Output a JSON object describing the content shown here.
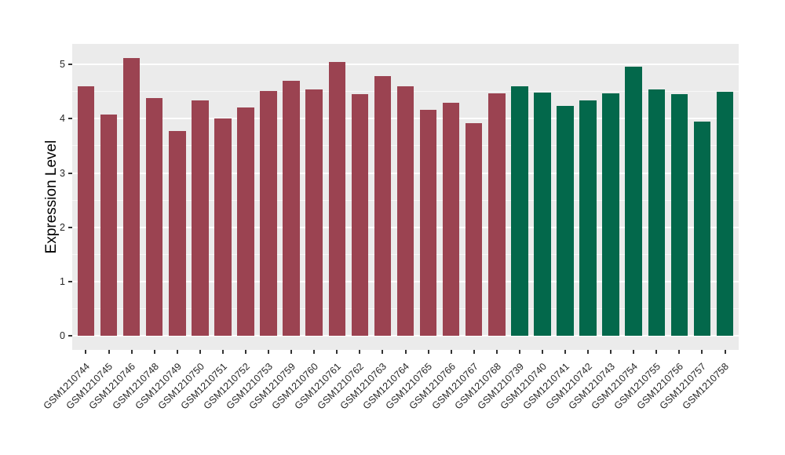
{
  "chart_data": {
    "type": "bar",
    "title": "",
    "xlabel": "",
    "ylabel": "Expression Level",
    "ylim": [
      0,
      5
    ],
    "yticks": [
      0,
      1,
      2,
      3,
      4,
      5
    ],
    "y_minor_ticks": [
      0.5,
      1.5,
      2.5,
      3.5,
      4.5
    ],
    "grid": true,
    "legend_position": "none",
    "panel_background": "#EBEBEB",
    "gridline_color": "#FFFFFF",
    "tick_color": "#333333",
    "axis_text_color": "#262626",
    "group_colors": {
      "maroon": "#9B4351",
      "green": "#03684B"
    },
    "bars": [
      {
        "label": "GSM1210744",
        "value": 4.6,
        "group": "maroon"
      },
      {
        "label": "GSM1210745",
        "value": 4.08,
        "group": "maroon"
      },
      {
        "label": "GSM1210746",
        "value": 5.12,
        "group": "maroon"
      },
      {
        "label": "GSM1210748",
        "value": 4.38,
        "group": "maroon"
      },
      {
        "label": "GSM1210749",
        "value": 3.78,
        "group": "maroon"
      },
      {
        "label": "GSM1210750",
        "value": 4.33,
        "group": "maroon"
      },
      {
        "label": "GSM1210751",
        "value": 4.01,
        "group": "maroon"
      },
      {
        "label": "GSM1210752",
        "value": 4.2,
        "group": "maroon"
      },
      {
        "label": "GSM1210753",
        "value": 4.51,
        "group": "maroon"
      },
      {
        "label": "GSM1210759",
        "value": 4.7,
        "group": "maroon"
      },
      {
        "label": "GSM1210760",
        "value": 4.54,
        "group": "maroon"
      },
      {
        "label": "GSM1210761",
        "value": 5.04,
        "group": "maroon"
      },
      {
        "label": "GSM1210762",
        "value": 4.45,
        "group": "maroon"
      },
      {
        "label": "GSM1210763",
        "value": 4.78,
        "group": "maroon"
      },
      {
        "label": "GSM1210764",
        "value": 4.59,
        "group": "maroon"
      },
      {
        "label": "GSM1210765",
        "value": 4.16,
        "group": "maroon"
      },
      {
        "label": "GSM1210766",
        "value": 4.29,
        "group": "maroon"
      },
      {
        "label": "GSM1210767",
        "value": 3.92,
        "group": "maroon"
      },
      {
        "label": "GSM1210768",
        "value": 4.46,
        "group": "maroon"
      },
      {
        "label": "GSM1210739",
        "value": 4.6,
        "group": "green"
      },
      {
        "label": "GSM1210740",
        "value": 4.48,
        "group": "green"
      },
      {
        "label": "GSM1210741",
        "value": 4.23,
        "group": "green"
      },
      {
        "label": "GSM1210742",
        "value": 4.33,
        "group": "green"
      },
      {
        "label": "GSM1210743",
        "value": 4.46,
        "group": "green"
      },
      {
        "label": "GSM1210754",
        "value": 4.96,
        "group": "green"
      },
      {
        "label": "GSM1210755",
        "value": 4.54,
        "group": "green"
      },
      {
        "label": "GSM1210756",
        "value": 4.45,
        "group": "green"
      },
      {
        "label": "GSM1210757",
        "value": 3.95,
        "group": "green"
      },
      {
        "label": "GSM1210758",
        "value": 4.49,
        "group": "green"
      }
    ]
  }
}
